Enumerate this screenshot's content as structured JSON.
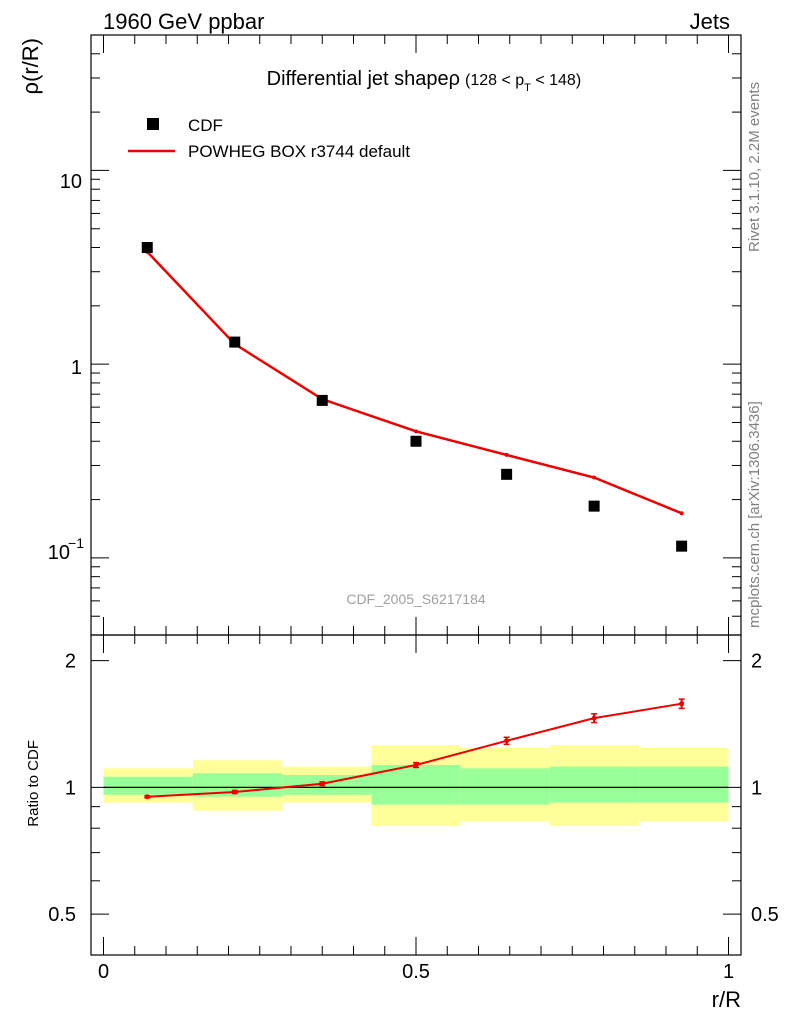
{
  "header": {
    "left": "1960 GeV ppbar",
    "right": "Jets"
  },
  "side_labels": {
    "rivet": "Rivet 3.1.10,  2.2M events",
    "mcplots": "mcplots.cern.ch [arXiv:1306.3436]"
  },
  "chart_data": [
    {
      "type": "scatter",
      "panel": "main",
      "title": "Differential jet shapeρ",
      "title_cut": {
        "prefix": "(128 < p",
        "sub": "T",
        "suffix": " < 148)"
      },
      "xlabel": "",
      "ylabel": "ρ(r/R)",
      "xlim": [
        -0.02,
        1.02
      ],
      "ylim": [
        0.04,
        50
      ],
      "yscale": "log",
      "yticks": [
        0.1,
        1,
        10
      ],
      "ytick_labels": {
        "one": "1",
        "ten": "10",
        "tenth_base": "10",
        "tenth_exp": "−1"
      },
      "legend_position": "top-left",
      "watermark": "CDF_2005_S6217184",
      "series": [
        {
          "name": "CDF",
          "style": "markers",
          "color": "#000000",
          "x": [
            0.07,
            0.21,
            0.35,
            0.5,
            0.645,
            0.785,
            0.925
          ],
          "y": [
            4.0,
            1.3,
            0.65,
            0.4,
            0.27,
            0.185,
            0.115
          ]
        },
        {
          "name": "POWHEG BOX r3744 default",
          "style": "line",
          "color": "#ee0000",
          "x": [
            0.07,
            0.21,
            0.35,
            0.5,
            0.645,
            0.785,
            0.925
          ],
          "y": [
            3.8,
            1.27,
            0.66,
            0.45,
            0.34,
            0.26,
            0.17
          ]
        }
      ]
    },
    {
      "type": "line",
      "panel": "ratio",
      "xlabel": "r/R",
      "ylabel": "Ratio to CDF",
      "xlim": [
        -0.02,
        1.02
      ],
      "ylim": [
        0.4,
        2.3
      ],
      "yscale": "log",
      "yticks": [
        0.5,
        1,
        2
      ],
      "ytick_labels": [
        "0.5",
        "1",
        "2"
      ],
      "xticks": [
        0,
        0.5,
        1
      ],
      "xtick_labels": [
        "0",
        "0.5",
        "1"
      ],
      "uncertainty_bands": {
        "bin_edges": [
          0.0,
          0.143,
          0.286,
          0.429,
          0.571,
          0.714,
          0.857,
          1.0
        ],
        "stat_low": [
          0.96,
          0.95,
          0.96,
          0.91,
          0.91,
          0.92,
          0.92
        ],
        "stat_high": [
          1.06,
          1.08,
          1.07,
          1.13,
          1.11,
          1.12,
          1.12
        ],
        "total_low": [
          0.92,
          0.88,
          0.92,
          0.81,
          0.83,
          0.81,
          0.83
        ],
        "total_high": [
          1.11,
          1.16,
          1.12,
          1.26,
          1.24,
          1.26,
          1.24
        ],
        "stat_color": "#99ff99",
        "total_color": "#ffff99"
      },
      "series": [
        {
          "name": "POWHEG BOX r3744 default",
          "color": "#ee0000",
          "x": [
            0.07,
            0.21,
            0.35,
            0.5,
            0.645,
            0.785,
            0.925
          ],
          "y": [
            0.95,
            0.975,
            1.02,
            1.13,
            1.29,
            1.46,
            1.58
          ],
          "err": [
            0.005,
            0.008,
            0.01,
            0.015,
            0.025,
            0.035,
            0.04
          ]
        }
      ]
    }
  ]
}
